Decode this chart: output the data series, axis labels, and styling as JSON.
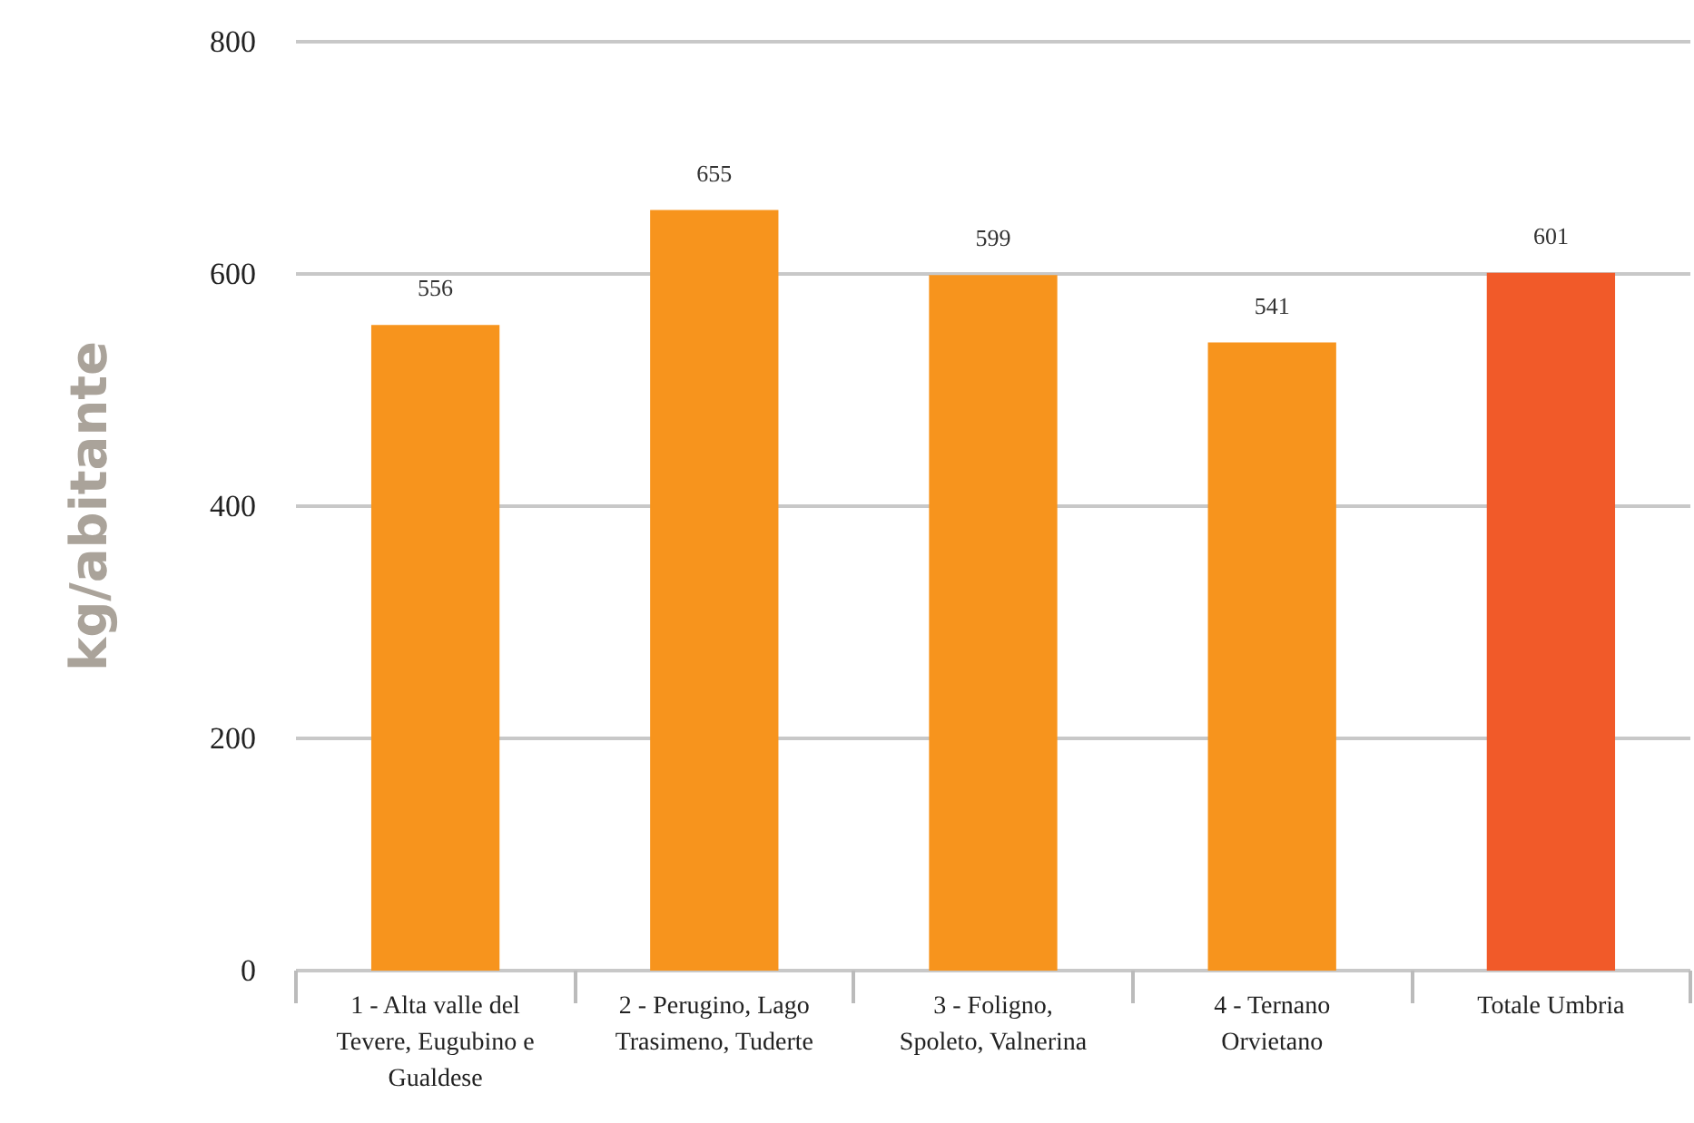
{
  "chart_data": {
    "type": "bar",
    "ylabel": "kg/abitante",
    "categories": [
      "1 - Alta valle del Tevere, Eugubino e Gualdese",
      "2 - Perugino, Lago Trasimeno, Tuderte",
      "3 - Foligno, Spoleto, Valnerina",
      "4 - Ternano Orvietano",
      "Totale Umbria"
    ],
    "values": [
      556,
      655,
      599,
      541,
      601
    ],
    "colors": [
      "#f7941d",
      "#f7941d",
      "#f7941d",
      "#f7941d",
      "#f15a29"
    ],
    "ylim": [
      0,
      800
    ],
    "yticks": [
      0,
      200,
      400,
      600,
      800
    ],
    "grid": "y",
    "data_labels": true
  }
}
